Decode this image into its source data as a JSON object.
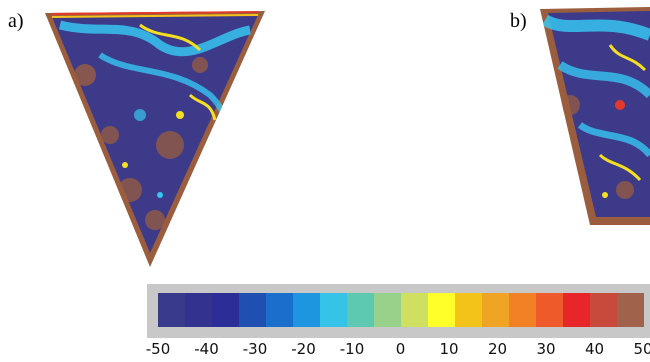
{
  "panels": [
    {
      "label": "a)"
    },
    {
      "label": "b)"
    }
  ],
  "colorbar": {
    "ticks": [
      "-50",
      "-40",
      "-30",
      "-20",
      "-10",
      "0",
      "10",
      "20",
      "30",
      "40",
      "50"
    ],
    "colors": [
      "#3a3a8c",
      "#33338f",
      "#2d2d98",
      "#1f4fb0",
      "#1a6fcc",
      "#1d95e0",
      "#35c4e8",
      "#5cc9b0",
      "#98d28a",
      "#cfe060",
      "#ffff2a",
      "#f4c31a",
      "#f0a423",
      "#f28025",
      "#ee5a2a",
      "#e8262a",
      "#c84a3c",
      "#a0624a"
    ]
  },
  "colors": {
    "background_navy": "#3d3a8a",
    "border_brown": "#9a5e3e",
    "accent_cyan": "#36c6f0",
    "accent_yellow": "#f4e020",
    "accent_red": "#e23a2a"
  }
}
